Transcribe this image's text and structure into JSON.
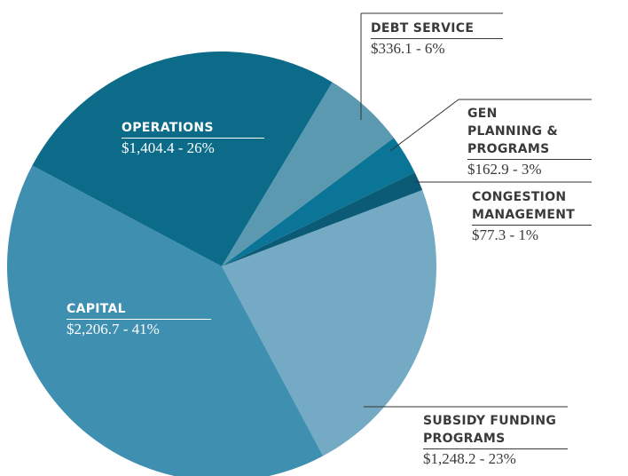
{
  "chart_data": {
    "type": "pie",
    "categories": [
      "OPERATIONS",
      "DEBT SERVICE",
      "GEN PLANNING & PROGRAMS",
      "CONGESTION MANAGEMENT",
      "SUBSIDY FUNDING PROGRAMS",
      "CAPITAL"
    ],
    "values": [
      1404.4,
      336.1,
      162.9,
      77.3,
      1248.2,
      2206.7
    ],
    "value_labels": [
      "$1,404.4 - 26%",
      "$336.1 - 6%",
      "$162.9 - 3%",
      "$77.3 - 1%",
      "$1,248.2 - 23%",
      "$2,206.7 - 41%"
    ],
    "colors": [
      "#0b6b89",
      "#5b99b0",
      "#0a7596",
      "#0b5b77",
      "#74aac4",
      "#3e8fb0"
    ]
  }
}
